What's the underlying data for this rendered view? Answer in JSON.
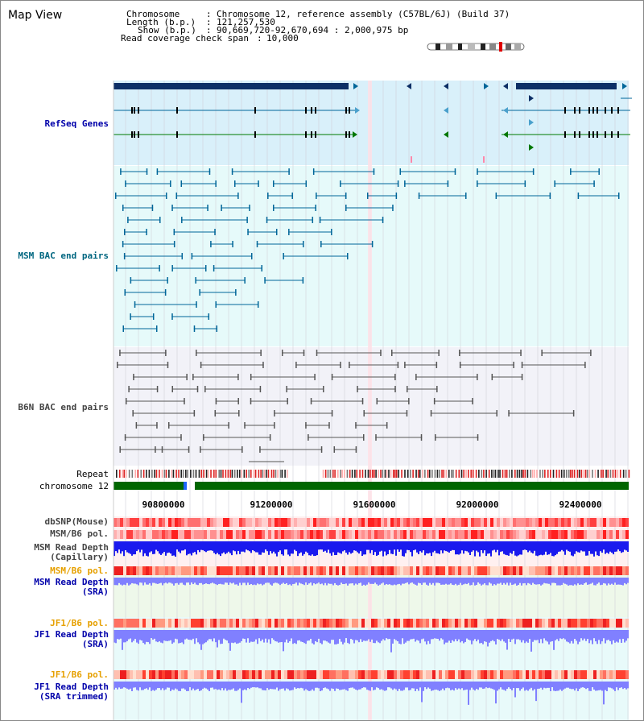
{
  "view_title": "Map View",
  "header": {
    "chromosome_key": "Chromosome",
    "chromosome_value": "Chromosome 12, reference assembly (C57BL/6J) (Build 37)",
    "length_key": "Length (b.p.)",
    "length_value": "121,257,530",
    "show_key": "Show (b.p.)",
    "show_value": "90,669,720-92,670,694 : 2,000,975 bp",
    "coverage_key": "Read coverage check span",
    "coverage_value": "10,000"
  },
  "tracks": {
    "refseq": "RefSeq Genes",
    "msm_bac": "MSM BAC end pairs",
    "b6n_bac": "B6N BAC end pairs",
    "repeat": "Repeat",
    "chromosome": "chromosome 12",
    "dbsnp": "dbSNP(Mouse)",
    "msm_b6_pol_1": "MSM/B6 pol.",
    "msm_rd_cap_1": "MSM Read Depth",
    "msm_rd_cap_2": "(Capillary)",
    "msm_b6_pol_2": "MSM/B6 pol.",
    "msm_rd_sra_1": "MSM Read Depth",
    "msm_rd_sra_2": "(SRA)",
    "jf1_b6_pol_1": "JF1/B6 pol.",
    "jf1_rd_sra_1": "JF1 Read Depth",
    "jf1_rd_sra_2": "(SRA)",
    "jf1_b6_pol_2": "JF1/B6 pol.",
    "jf1_rd_trim_1": "JF1 Read Depth",
    "jf1_rd_trim_2": "(SRA trimmed)"
  },
  "axis_ticks": [
    "90800000",
    "91200000",
    "91600000",
    "92000000",
    "92400000"
  ],
  "colors": {
    "label_blue": "#0000aa",
    "label_teal": "#006680",
    "label_gray": "#444444",
    "label_orange": "#e6a000",
    "refseq_bg": "#d9f0fa",
    "msm_bg": "#e6fafa",
    "b6n_bg": "#f2f2f8",
    "gene_dark": "#0d2f66",
    "gene_teal": "#006699",
    "gene_green": "#007700",
    "chrom_green": "#006600",
    "depth_blue": "#1a1aee",
    "depth_lav": "#8080ff"
  },
  "icons": {
    "ideogram": "chromosome-ideogram-icon"
  }
}
